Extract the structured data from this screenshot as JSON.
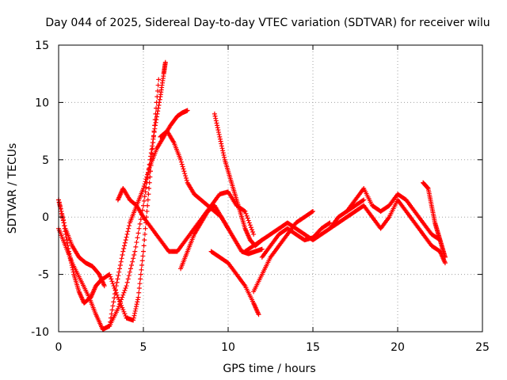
{
  "chart_data": {
    "type": "scatter",
    "title": "Day 044 of 2025, Sidereal Day-to-day VTEC variation (SDTVAR) for receiver wilu",
    "xlabel": "GPS time / hours",
    "ylabel": "SDTVAR / TECUs",
    "xlim": [
      0,
      25
    ],
    "ylim": [
      -10,
      15
    ],
    "xticks": [
      0,
      5,
      10,
      15,
      20,
      25
    ],
    "yticks": [
      -10,
      -5,
      0,
      5,
      10,
      15
    ],
    "xtick_labels": [
      "0",
      "5",
      "10",
      "15",
      "20",
      "25"
    ],
    "ytick_labels": [
      "-10",
      "-5",
      "0",
      "5",
      "10",
      "15"
    ],
    "grid": true,
    "marker": "+",
    "color": "#ff0000",
    "series": [
      {
        "name": "track-1",
        "x": [
          0.0,
          0.4,
          0.8,
          1.3,
          1.8,
          2.2,
          2.6,
          3.0,
          3.5,
          4.0,
          4.5,
          5.0,
          5.4,
          5.7,
          6.0,
          6.2,
          6.3
        ],
        "y": [
          -1.0,
          -2.5,
          -4.0,
          -5.5,
          -7.0,
          -8.5,
          -9.8,
          -9.5,
          -8.0,
          -6.0,
          -3.0,
          1.0,
          5.0,
          8.0,
          10.5,
          12.5,
          13.5
        ]
      },
      {
        "name": "track-2",
        "x": [
          0.0,
          0.3,
          0.6,
          0.9,
          1.2,
          1.5,
          1.9,
          2.2,
          2.5,
          3.0,
          3.5,
          4.0,
          4.4,
          4.7,
          5.0,
          5.3,
          5.6,
          5.9
        ],
        "y": [
          1.5,
          -0.5,
          -3.0,
          -5.0,
          -6.5,
          -7.5,
          -7.0,
          -6.0,
          -5.5,
          -5.0,
          -7.0,
          -8.8,
          -9.0,
          -7.0,
          -3.0,
          2.0,
          7.0,
          12.0
        ]
      },
      {
        "name": "track-3",
        "x": [
          3.5,
          3.8,
          4.2,
          4.6,
          5.0,
          5.4,
          5.8,
          6.2,
          6.6,
          7.0,
          7.3,
          7.6
        ],
        "y": [
          1.5,
          2.5,
          1.5,
          1.0,
          2.5,
          4.5,
          6.0,
          7.0,
          8.0,
          8.8,
          9.1,
          9.3
        ]
      },
      {
        "name": "track-4",
        "x": [
          0.0,
          0.4,
          0.8,
          1.2,
          1.6,
          2.0,
          2.4,
          2.7
        ],
        "y": [
          1.5,
          -1.0,
          -2.5,
          -3.5,
          -4.0,
          -4.3,
          -5.0,
          -6.0
        ]
      },
      {
        "name": "track-5",
        "x": [
          3.0,
          3.4,
          3.8,
          4.2,
          4.6,
          5.0,
          5.5,
          6.0,
          6.5,
          7.0,
          7.5,
          8.0,
          8.5,
          9.0,
          9.5,
          10.0,
          10.5,
          11.0,
          11.5
        ],
        "y": [
          -9.5,
          -6.0,
          -3.0,
          -0.5,
          1.0,
          0.0,
          -1.0,
          -2.0,
          -3.0,
          -3.0,
          -2.0,
          -1.0,
          0.0,
          1.0,
          2.0,
          2.2,
          1.0,
          0.5,
          -1.5
        ]
      },
      {
        "name": "track-6",
        "x": [
          6.0,
          6.4,
          6.8,
          7.2,
          7.6,
          8.0,
          8.4,
          8.8,
          9.2,
          9.6,
          10.0,
          10.4,
          10.8,
          11.2,
          11.6,
          12.0
        ],
        "y": [
          7.0,
          7.5,
          6.5,
          5.0,
          3.0,
          2.0,
          1.5,
          1.0,
          0.5,
          0.0,
          -1.0,
          -2.0,
          -3.0,
          -3.2,
          -3.0,
          -2.8
        ]
      },
      {
        "name": "track-7",
        "x": [
          7.2,
          7.6,
          8.0,
          8.4,
          8.8,
          9.2,
          9.6,
          10.0
        ],
        "y": [
          -4.5,
          -3.0,
          -1.5,
          -0.5,
          0.5,
          1.0,
          0.0,
          -1.0
        ]
      },
      {
        "name": "track-8",
        "x": [
          9.2,
          9.5,
          9.8,
          10.1,
          10.4,
          10.7,
          11.0,
          11.3,
          11.6,
          12.0
        ],
        "y": [
          9.0,
          7.0,
          5.0,
          3.5,
          2.0,
          0.5,
          -1.0,
          -2.0,
          -2.5,
          -2.0
        ]
      },
      {
        "name": "track-9",
        "x": [
          9.0,
          9.5,
          10.0,
          10.5,
          11.0,
          11.5,
          11.8
        ],
        "y": [
          -3.0,
          -3.5,
          -4.0,
          -5.0,
          -6.0,
          -7.5,
          -8.5
        ]
      },
      {
        "name": "track-10",
        "x": [
          11.5,
          12.0,
          12.5,
          13.0,
          13.5,
          14.0,
          14.5,
          15.0
        ],
        "y": [
          -6.5,
          -5.0,
          -3.5,
          -2.5,
          -1.5,
          -0.5,
          0.0,
          0.5
        ]
      },
      {
        "name": "track-11",
        "x": [
          11.0,
          11.5,
          12.0,
          12.5,
          13.0,
          13.5,
          14.0,
          14.5,
          15.0,
          15.5,
          16.0,
          16.5,
          17.0,
          17.5,
          18.0
        ],
        "y": [
          -3.0,
          -2.5,
          -2.0,
          -1.5,
          -1.0,
          -0.5,
          -1.0,
          -1.5,
          -2.0,
          -1.5,
          -1.0,
          0.0,
          0.5,
          1.0,
          1.5
        ]
      },
      {
        "name": "track-12",
        "x": [
          16.0,
          16.5,
          17.0,
          17.5,
          18.0,
          18.5,
          19.0,
          19.5,
          20.0,
          20.5,
          21.0,
          21.5,
          22.0,
          22.5,
          22.8
        ],
        "y": [
          -1.0,
          -0.5,
          0.0,
          0.5,
          1.0,
          0.0,
          -1.0,
          0.0,
          1.5,
          0.5,
          -0.5,
          -1.5,
          -2.5,
          -3.0,
          -4.0
        ]
      },
      {
        "name": "track-13",
        "x": [
          17.0,
          17.5,
          18.0,
          18.5,
          19.0,
          19.5,
          20.0,
          20.5,
          21.0,
          21.5,
          22.0,
          22.5
        ],
        "y": [
          0.5,
          1.5,
          2.5,
          1.0,
          0.5,
          1.0,
          2.0,
          1.5,
          0.5,
          -0.5,
          -1.5,
          -2.0
        ]
      },
      {
        "name": "track-14",
        "x": [
          21.5,
          21.8,
          22.0,
          22.2,
          22.4,
          22.6,
          22.8
        ],
        "y": [
          3.0,
          2.5,
          1.0,
          -0.5,
          -1.5,
          -2.5,
          -3.5
        ]
      },
      {
        "name": "track-15",
        "x": [
          12.0,
          12.5,
          13.0,
          13.5,
          14.0,
          14.5,
          15.0,
          15.5,
          16.0
        ],
        "y": [
          -3.5,
          -2.5,
          -1.5,
          -1.0,
          -1.5,
          -2.0,
          -1.8,
          -1.0,
          -0.5
        ]
      }
    ]
  }
}
